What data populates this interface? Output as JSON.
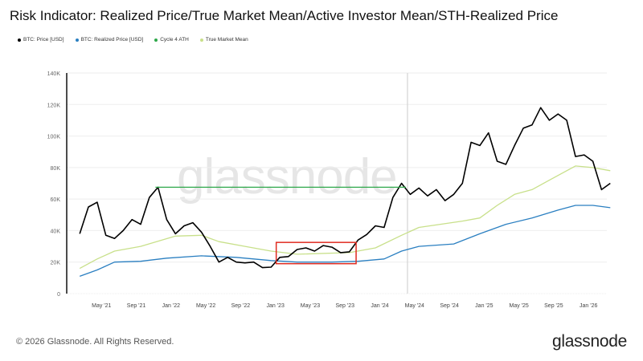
{
  "title": "Risk Indicator: Realized Price/True Market Mean/Active Investor Mean/STH-Realized Price",
  "footer": "© 2026 Glassnode. All Rights Reserved.",
  "brand": "glassnode",
  "watermark": "glassnode",
  "chart_data": {
    "type": "line",
    "legend": [
      {
        "name": "BTC: Price [USD]",
        "color": "#000000"
      },
      {
        "name": "BTC: Realized Price [USD]",
        "color": "#2a7fc1"
      },
      {
        "name": "Cycle 4 ATH",
        "color": "#2ea84a"
      },
      {
        "name": "True Market Mean",
        "color": "#c8e08a"
      }
    ],
    "ylim": [
      0,
      140000
    ],
    "yticks": [
      "0",
      "20K",
      "40K",
      "60K",
      "80K",
      "100K",
      "120K",
      "140K"
    ],
    "ytick_values": [
      0,
      20000,
      40000,
      60000,
      80000,
      100000,
      120000,
      140000
    ],
    "xticks": [
      "May '21",
      "Sep '21",
      "Jan '22",
      "May '22",
      "Sep '22",
      "Jan '23",
      "May '23",
      "Sep '23",
      "Jan '24",
      "May '24",
      "Sep '24",
      "Jan '25",
      "May '25",
      "Sep '25",
      "Jan '26"
    ],
    "xtick_dates": [
      "2021-05",
      "2021-09",
      "2022-01",
      "2022-05",
      "2022-09",
      "2023-01",
      "2023-05",
      "2023-09",
      "2024-01",
      "2024-05",
      "2024-09",
      "2025-01",
      "2025-05",
      "2025-09",
      "2026-01"
    ],
    "grid": true,
    "legend_position": "top-left",
    "series": [
      {
        "name": "BTC: Price [USD]",
        "color": "#000000",
        "x": [
          "2021-02",
          "2021-03",
          "2021-04",
          "2021-05",
          "2021-06",
          "2021-07",
          "2021-08",
          "2021-09",
          "2021-10",
          "2021-11",
          "2021-12",
          "2022-01",
          "2022-02",
          "2022-03",
          "2022-04",
          "2022-05",
          "2022-06",
          "2022-07",
          "2022-08",
          "2022-09",
          "2022-10",
          "2022-11",
          "2022-12",
          "2023-01",
          "2023-02",
          "2023-03",
          "2023-04",
          "2023-05",
          "2023-06",
          "2023-07",
          "2023-08",
          "2023-09",
          "2023-10",
          "2023-11",
          "2023-12",
          "2024-01",
          "2024-02",
          "2024-03",
          "2024-04",
          "2024-05",
          "2024-06",
          "2024-07",
          "2024-08",
          "2024-09",
          "2024-10",
          "2024-11",
          "2024-12",
          "2025-01",
          "2025-02",
          "2025-03",
          "2025-04",
          "2025-05",
          "2025-06",
          "2025-07",
          "2025-08",
          "2025-09",
          "2025-10",
          "2025-11",
          "2025-12",
          "2026-01",
          "2026-02",
          "2026-03"
        ],
        "values": [
          38000,
          55000,
          58000,
          37000,
          35000,
          40000,
          47000,
          44000,
          61000,
          67500,
          47000,
          38000,
          43000,
          45000,
          39000,
          30000,
          20000,
          23000,
          20000,
          19500,
          20000,
          16500,
          16800,
          23000,
          23500,
          28000,
          29000,
          27000,
          30500,
          29500,
          26000,
          26500,
          34000,
          37500,
          43000,
          42000,
          61000,
          70000,
          63000,
          67000,
          62000,
          66000,
          59000,
          63000,
          70000,
          96000,
          94000,
          102000,
          84000,
          82000,
          94000,
          105000,
          107000,
          118000,
          110000,
          114000,
          110000,
          87000,
          88000,
          84000,
          66000,
          70000
        ]
      },
      {
        "name": "BTC: Realized Price [USD]",
        "color": "#2a7fc1",
        "x": [
          "2021-02",
          "2021-04",
          "2021-06",
          "2021-09",
          "2021-12",
          "2022-04",
          "2022-08",
          "2022-12",
          "2023-03",
          "2023-07",
          "2023-10",
          "2024-01",
          "2024-03",
          "2024-05",
          "2024-09",
          "2024-12",
          "2025-03",
          "2025-06",
          "2025-09",
          "2025-11",
          "2026-01",
          "2026-03"
        ],
        "values": [
          11000,
          15000,
          20000,
          20500,
          22500,
          24000,
          23000,
          21000,
          20000,
          20000,
          20500,
          22000,
          27000,
          30000,
          31500,
          38000,
          44000,
          48000,
          53000,
          56000,
          56000,
          54500
        ]
      },
      {
        "name": "True Market Mean",
        "color": "#c8e08a",
        "x": [
          "2021-02",
          "2021-04",
          "2021-06",
          "2021-09",
          "2022-01",
          "2022-04",
          "2022-06",
          "2022-09",
          "2022-12",
          "2023-03",
          "2023-09",
          "2023-12",
          "2024-03",
          "2024-05",
          "2024-10",
          "2024-12",
          "2025-02",
          "2025-04",
          "2025-06",
          "2025-08",
          "2025-10",
          "2025-11",
          "2026-01",
          "2026-03"
        ],
        "values": [
          16000,
          22000,
          27000,
          30000,
          36500,
          37000,
          33000,
          30000,
          27000,
          25000,
          26000,
          29000,
          37000,
          42000,
          46000,
          48000,
          56000,
          63000,
          66000,
          72000,
          78000,
          81000,
          80000,
          78000
        ]
      },
      {
        "name": "Cycle 4 ATH",
        "color": "#2ea84a",
        "x": [
          "2021-11",
          "2024-03"
        ],
        "values": [
          67500,
          67500
        ]
      }
    ],
    "annotations": [
      {
        "type": "vertical-line",
        "date": "2024-04",
        "color": "#cccccc"
      },
      {
        "type": "rectangle",
        "date_range": [
          "2023-01",
          "2023-10"
        ],
        "value_range": [
          19000,
          32500
        ],
        "color": "#e02b20"
      }
    ]
  }
}
